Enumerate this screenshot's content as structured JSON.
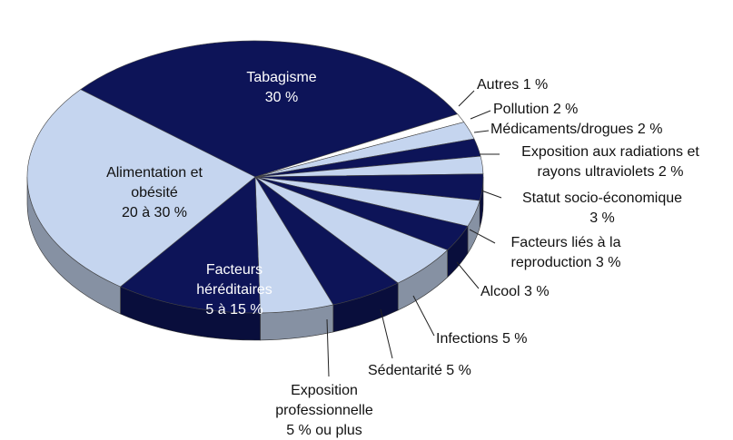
{
  "chart_data": {
    "type": "pie",
    "categories": [
      "Tabagisme",
      "Autres",
      "Pollution",
      "Médicaments/drogues",
      "Exposition aux radiations et rayons ultraviolets",
      "Statut socio-économique",
      "Facteurs liés à la reproduction",
      "Alcool",
      "Infections",
      "Sédentarité",
      "Exposition professionnelle",
      "Facteurs héréditaires",
      "Alimentation et obésité"
    ],
    "values": [
      30,
      1,
      2,
      2,
      2,
      3,
      3,
      3,
      5,
      5,
      5,
      10,
      25
    ],
    "value_labels": [
      "30 %",
      "1 %",
      "2 %",
      "2 %",
      "2 %",
      "3 %",
      "3 %",
      "3 %",
      "5 %",
      "5 %",
      "5 % ou plus",
      "5 à 15 %",
      "20 à 30 %"
    ],
    "colors": [
      "#0d1458",
      "#ffffff",
      "#c5d5ef",
      "#0d1458",
      "#c5d5ef",
      "#0d1458",
      "#c5d5ef",
      "#0d1458",
      "#c5d5ef",
      "#0d1458",
      "#c5d5ef",
      "#0d1458",
      "#c5d5ef"
    ]
  }
}
